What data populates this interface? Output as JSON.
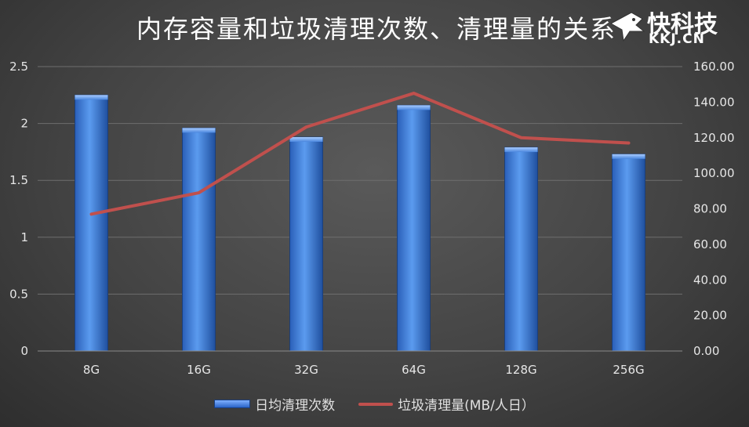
{
  "chart_data": {
    "type": "bar",
    "title": "内存容量和垃圾清理次数、清理量的关系",
    "categories": [
      "8G",
      "16G",
      "32G",
      "64G",
      "128G",
      "256G"
    ],
    "series": [
      {
        "name": "日均清理次数",
        "type": "bar",
        "axis": "left",
        "values": [
          2.25,
          1.96,
          1.88,
          2.16,
          1.79,
          1.73
        ],
        "color": "#3a78d6"
      },
      {
        "name": "垃圾清理量(MB/人日）",
        "type": "line",
        "axis": "right",
        "values": [
          77,
          89,
          126,
          145,
          120,
          117
        ],
        "color": "#c0504d"
      }
    ],
    "y_left": {
      "min": 0,
      "max": 2.5,
      "ticks": [
        "0",
        "0.5",
        "1",
        "1.5",
        "2",
        "2.5"
      ]
    },
    "y_right": {
      "min": 0,
      "max": 160,
      "ticks": [
        "0.00",
        "20.00",
        "40.00",
        "60.00",
        "80.00",
        "100.00",
        "120.00",
        "140.00",
        "160.00"
      ]
    },
    "grid": true,
    "legend": "bottom"
  },
  "watermark": {
    "brand": "快科技",
    "domain": "KKJ.CN"
  }
}
